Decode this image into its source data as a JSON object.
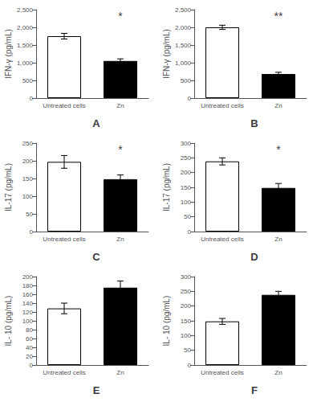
{
  "chart_data": [
    {
      "type": "bar",
      "title": "A",
      "ylabel": "IFN-γ (pg/mL)",
      "categories": [
        "Untreated cells",
        "Zn"
      ],
      "values": [
        1750,
        1050
      ],
      "errors": [
        80,
        60
      ],
      "colors": [
        "white",
        "black"
      ],
      "ylim": [
        0,
        2500
      ],
      "yticks": [
        0,
        500,
        1000,
        1500,
        2000,
        2500
      ],
      "grid": false,
      "annotations": [
        {
          "text": "*",
          "x": "Zn"
        }
      ]
    },
    {
      "type": "bar",
      "title": "B",
      "ylabel": "IFN-γ (pg/mL)",
      "categories": [
        "Untreated cells",
        "Zn"
      ],
      "values": [
        2000,
        680
      ],
      "errors": [
        60,
        50
      ],
      "colors": [
        "white",
        "black"
      ],
      "ylim": [
        0,
        2500
      ],
      "yticks": [
        0,
        500,
        1000,
        1500,
        2000,
        2500
      ],
      "grid": false,
      "annotations": [
        {
          "text": "**",
          "x": "Zn"
        }
      ]
    },
    {
      "type": "bar",
      "title": "C",
      "ylabel": "IL-17 (pg/mL)",
      "categories": [
        "Untreated cells",
        "Zn"
      ],
      "values": [
        197,
        148
      ],
      "errors": [
        18,
        12
      ],
      "colors": [
        "white",
        "black"
      ],
      "ylim": [
        0,
        250
      ],
      "yticks": [
        0,
        50,
        100,
        150,
        200,
        250
      ],
      "grid": false,
      "annotations": [
        {
          "text": "*",
          "x": "Zn"
        }
      ]
    },
    {
      "type": "bar",
      "title": "D",
      "ylabel": "IL-17 (pg/mL)",
      "categories": [
        "Untreated cells",
        "Zn"
      ],
      "values": [
        238,
        148
      ],
      "errors": [
        12,
        15
      ],
      "colors": [
        "white",
        "black"
      ],
      "ylim": [
        0,
        300
      ],
      "yticks": [
        0,
        50,
        100,
        150,
        200,
        250,
        300
      ],
      "grid": false,
      "annotations": [
        {
          "text": "*",
          "x": "Zn"
        }
      ]
    },
    {
      "type": "bar",
      "title": "E",
      "ylabel": "IL- 10 (pg/mL)",
      "categories": [
        "Untreated cells",
        "Zn"
      ],
      "values": [
        128,
        175
      ],
      "errors": [
        12,
        15
      ],
      "colors": [
        "white",
        "black"
      ],
      "ylim": [
        0,
        200
      ],
      "yticks": [
        0,
        20,
        40,
        60,
        80,
        100,
        120,
        140,
        160,
        180,
        200
      ],
      "grid": false
    },
    {
      "type": "bar",
      "title": "F",
      "ylabel": "IL- 10 (pg/mL)",
      "categories": [
        "Untreated cells",
        "Zn"
      ],
      "values": [
        148,
        238
      ],
      "errors": [
        10,
        12
      ],
      "colors": [
        "white",
        "black"
      ],
      "ylim": [
        0,
        300
      ],
      "yticks": [
        0,
        50,
        100,
        150,
        200,
        250,
        300
      ],
      "grid": false
    }
  ]
}
